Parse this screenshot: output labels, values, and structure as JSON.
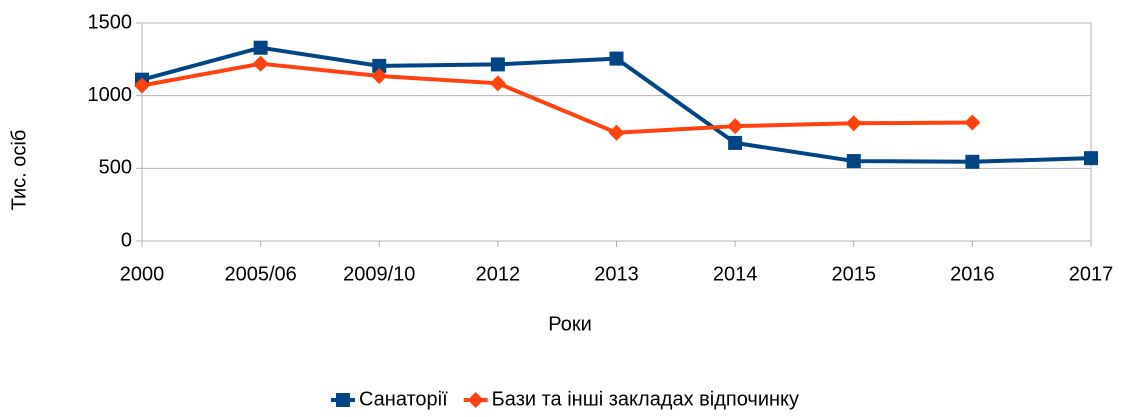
{
  "chart_data": {
    "type": "line",
    "x_label": "Роки",
    "y_label": "Тис. осіб",
    "categories": [
      "2000",
      "2005/06",
      "2009/10",
      "2012",
      "2013",
      "2014",
      "2015",
      "2016",
      "2017"
    ],
    "series": [
      {
        "name": "Санаторії",
        "color": "#004586",
        "marker": "square",
        "values": [
          1110,
          1330,
          1205,
          1215,
          1255,
          675,
          550,
          545,
          570
        ]
      },
      {
        "name": "Бази та інші закладах відпочинку",
        "color": "#ff420e",
        "marker": "diamond",
        "values": [
          1070,
          1220,
          1135,
          1085,
          745,
          790,
          810,
          815,
          null
        ]
      }
    ],
    "ylim": [
      0,
      1500
    ],
    "yticks": [
      0,
      500,
      1000,
      1500
    ],
    "grid": true,
    "legend": "bottom"
  }
}
